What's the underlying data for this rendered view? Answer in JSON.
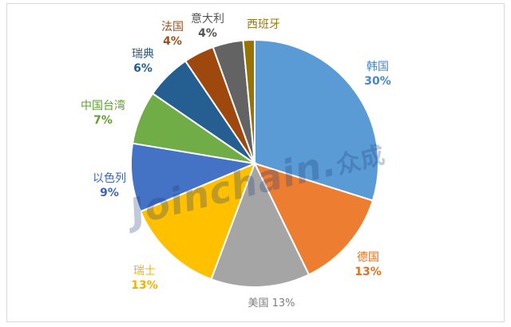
{
  "chart_data": {
    "type": "pie",
    "title": "",
    "start_angle_deg": 0,
    "direction": "clockwise",
    "slices": [
      {
        "label": "韩国",
        "pct_label": "30%",
        "value": 30,
        "color": "#5B9BD5",
        "label_color": "#4A86C5"
      },
      {
        "label": "德国",
        "pct_label": "13%",
        "value": 13,
        "color": "#ED7D31",
        "label_color": "#E0701E"
      },
      {
        "label": "美国",
        "pct_label": "13%",
        "value": 13,
        "color": "#A5A5A5",
        "label_color": "#7F7F7F"
      },
      {
        "label": "瑞士",
        "pct_label": "13%",
        "value": 13,
        "color": "#FFC000",
        "label_color": "#F0B400"
      },
      {
        "label": "以色列",
        "pct_label": "9%",
        "value": 9,
        "color": "#4472C4",
        "label_color": "#3A66B8"
      },
      {
        "label": "中国台湾",
        "pct_label": "7%",
        "value": 7,
        "color": "#70AD47",
        "label_color": "#5EA032"
      },
      {
        "label": "瑞典",
        "pct_label": "6%",
        "value": 6,
        "color": "#255E91",
        "label_color": "#255E91"
      },
      {
        "label": "法国",
        "pct_label": "4%",
        "value": 4,
        "color": "#9E480E",
        "label_color": "#A0501A"
      },
      {
        "label": "意大利",
        "pct_label": "4%",
        "value": 4,
        "color": "#636363",
        "label_color": "#555555"
      },
      {
        "label": "西班牙",
        "pct_label": "",
        "value": 1.5,
        "color": "#997300",
        "label_color": "#9A7A10"
      }
    ]
  },
  "watermark": {
    "latin": "Joinchain",
    "dot": ".",
    "cn": "众成"
  }
}
